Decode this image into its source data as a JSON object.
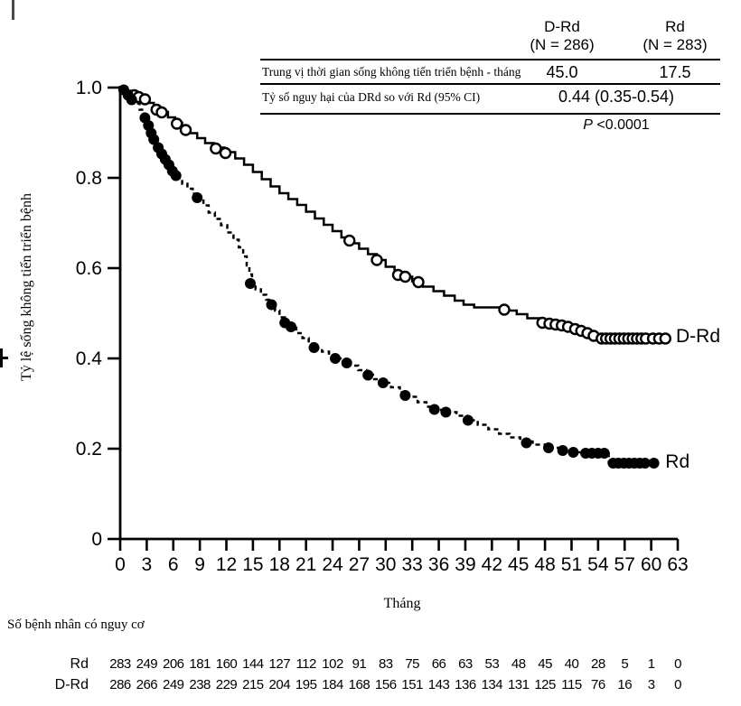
{
  "summary_table": {
    "col1_header_line1": "D-Rd",
    "col1_header_line2": "(N = 286)",
    "col2_header_line1": "Rd",
    "col2_header_line2": "(N = 283)",
    "row1_label": "Trung vị thời gian sống không tiến triển bệnh - tháng",
    "row1_col1": "45.0",
    "row1_col2": "17.5",
    "row2_label": "Tỷ số nguy hại của DRd so với Rd (95% CI)",
    "row2_value": "0.44 (0.35-0.54)",
    "p_label": "P",
    "p_value": " <0.0001"
  },
  "chart_data": {
    "type": "line",
    "subtype": "kaplan-meier-step",
    "title": "",
    "xlabel": "Tháng",
    "ylabel": "Tỷ lệ sống không tiến triển bệnh",
    "xlim": [
      0,
      63
    ],
    "ylim": [
      0,
      1
    ],
    "grid": false,
    "x_ticks": [
      0,
      3,
      6,
      9,
      12,
      15,
      18,
      21,
      24,
      27,
      30,
      33,
      36,
      39,
      42,
      45,
      48,
      51,
      54,
      57,
      60,
      63
    ],
    "y_ticks": [
      "1.0",
      "0.8",
      "0.6",
      "0.4",
      "0.2",
      "0"
    ],
    "series": [
      {
        "name": "D-Rd",
        "style": "solid",
        "marker": "open-circle",
        "color": "#000000",
        "label_at": [
          62.8,
          0.45
        ],
        "steps": [
          [
            0,
            1.0
          ],
          [
            0.8,
            0.993
          ],
          [
            1.5,
            0.985
          ],
          [
            2.2,
            0.976
          ],
          [
            3.0,
            0.966
          ],
          [
            3.8,
            0.956
          ],
          [
            4.6,
            0.946
          ],
          [
            5.4,
            0.934
          ],
          [
            6.2,
            0.922
          ],
          [
            7.0,
            0.91
          ],
          [
            7.8,
            0.899
          ],
          [
            8.7,
            0.888
          ],
          [
            9.6,
            0.877
          ],
          [
            10.6,
            0.867
          ],
          [
            11.8,
            0.857
          ],
          [
            13.0,
            0.843
          ],
          [
            14.0,
            0.829
          ],
          [
            15.0,
            0.813
          ],
          [
            16.0,
            0.797
          ],
          [
            17.0,
            0.781
          ],
          [
            18.0,
            0.766
          ],
          [
            19.0,
            0.753
          ],
          [
            20.0,
            0.74
          ],
          [
            21.0,
            0.725
          ],
          [
            22.0,
            0.71
          ],
          [
            23.0,
            0.696
          ],
          [
            24.0,
            0.682
          ],
          [
            25.0,
            0.668
          ],
          [
            26.0,
            0.655
          ],
          [
            27.0,
            0.643
          ],
          [
            28.0,
            0.631
          ],
          [
            29.0,
            0.618
          ],
          [
            30.0,
            0.603
          ],
          [
            31.0,
            0.591
          ],
          [
            32.0,
            0.581
          ],
          [
            33.0,
            0.571
          ],
          [
            34.2,
            0.559
          ],
          [
            35.4,
            0.549
          ],
          [
            36.6,
            0.539
          ],
          [
            37.8,
            0.528
          ],
          [
            38.8,
            0.519
          ],
          [
            40.0,
            0.513
          ],
          [
            43.6,
            0.506
          ],
          [
            44.8,
            0.498
          ],
          [
            46.0,
            0.489
          ],
          [
            47.4,
            0.481
          ],
          [
            49.4,
            0.474
          ],
          [
            51.0,
            0.467
          ],
          [
            52.4,
            0.459
          ],
          [
            53.5,
            0.451
          ],
          [
            54.3,
            0.444
          ],
          [
            61.8,
            0.444
          ]
        ],
        "censors": [
          [
            1.6,
            0.983
          ],
          [
            2.1,
            0.979
          ],
          [
            2.8,
            0.974
          ],
          [
            4.1,
            0.951
          ],
          [
            4.7,
            0.945
          ],
          [
            6.4,
            0.92
          ],
          [
            7.4,
            0.906
          ],
          [
            10.8,
            0.865
          ],
          [
            11.9,
            0.855
          ],
          [
            25.9,
            0.661
          ],
          [
            29.0,
            0.618
          ],
          [
            31.4,
            0.585
          ],
          [
            32.2,
            0.581
          ],
          [
            33.7,
            0.569
          ],
          [
            43.4,
            0.508
          ],
          [
            47.7,
            0.479
          ],
          [
            48.5,
            0.477
          ],
          [
            49.2,
            0.475
          ],
          [
            49.9,
            0.473
          ],
          [
            50.6,
            0.47
          ],
          [
            51.4,
            0.465
          ],
          [
            52.1,
            0.461
          ],
          [
            52.8,
            0.456
          ],
          [
            53.5,
            0.45
          ],
          [
            54.4,
            0.444
          ],
          [
            54.9,
            0.444
          ],
          [
            55.4,
            0.444
          ],
          [
            55.9,
            0.444
          ],
          [
            56.4,
            0.444
          ],
          [
            56.9,
            0.444
          ],
          [
            57.4,
            0.444
          ],
          [
            57.9,
            0.444
          ],
          [
            58.4,
            0.444
          ],
          [
            58.9,
            0.444
          ],
          [
            59.4,
            0.444
          ],
          [
            60.2,
            0.444
          ],
          [
            60.9,
            0.444
          ],
          [
            61.6,
            0.444
          ]
        ]
      },
      {
        "name": "Rd",
        "style": "dashed",
        "marker": "filled-circle",
        "color": "#000000",
        "label_at": [
          61.6,
          0.172
        ],
        "steps": [
          [
            0,
            1.0
          ],
          [
            0.5,
            0.991
          ],
          [
            1.0,
            0.979
          ],
          [
            1.6,
            0.965
          ],
          [
            2.2,
            0.951
          ],
          [
            2.7,
            0.936
          ],
          [
            3.1,
            0.921
          ],
          [
            3.4,
            0.906
          ],
          [
            3.7,
            0.891
          ],
          [
            4.0,
            0.877
          ],
          [
            4.4,
            0.863
          ],
          [
            4.8,
            0.849
          ],
          [
            5.2,
            0.837
          ],
          [
            5.6,
            0.825
          ],
          [
            6.0,
            0.812
          ],
          [
            6.5,
            0.799
          ],
          [
            7.0,
            0.787
          ],
          [
            7.6,
            0.776
          ],
          [
            8.2,
            0.765
          ],
          [
            8.8,
            0.753
          ],
          [
            9.4,
            0.739
          ],
          [
            10.0,
            0.723
          ],
          [
            10.7,
            0.709
          ],
          [
            11.4,
            0.695
          ],
          [
            12.1,
            0.679
          ],
          [
            12.8,
            0.663
          ],
          [
            13.4,
            0.646
          ],
          [
            13.9,
            0.626
          ],
          [
            14.3,
            0.606
          ],
          [
            14.6,
            0.586
          ],
          [
            14.9,
            0.566
          ],
          [
            15.3,
            0.553
          ],
          [
            15.9,
            0.541
          ],
          [
            16.5,
            0.53
          ],
          [
            17.0,
            0.519
          ],
          [
            17.5,
            0.506
          ],
          [
            18.0,
            0.491
          ],
          [
            18.6,
            0.479
          ],
          [
            19.2,
            0.468
          ],
          [
            19.9,
            0.456
          ],
          [
            20.6,
            0.445
          ],
          [
            21.3,
            0.433
          ],
          [
            22.0,
            0.423
          ],
          [
            22.8,
            0.415
          ],
          [
            23.6,
            0.408
          ],
          [
            24.4,
            0.4
          ],
          [
            25.2,
            0.392
          ],
          [
            26.0,
            0.384
          ],
          [
            26.9,
            0.374
          ],
          [
            27.8,
            0.364
          ],
          [
            28.7,
            0.354
          ],
          [
            29.6,
            0.346
          ],
          [
            30.6,
            0.336
          ],
          [
            31.6,
            0.325
          ],
          [
            32.6,
            0.315
          ],
          [
            33.6,
            0.303
          ],
          [
            34.6,
            0.293
          ],
          [
            35.6,
            0.286
          ],
          [
            36.8,
            0.281
          ],
          [
            38.0,
            0.273
          ],
          [
            39.2,
            0.263
          ],
          [
            40.4,
            0.253
          ],
          [
            41.6,
            0.243
          ],
          [
            42.8,
            0.233
          ],
          [
            44.0,
            0.225
          ],
          [
            45.2,
            0.216
          ],
          [
            46.6,
            0.209
          ],
          [
            48.2,
            0.202
          ],
          [
            49.6,
            0.197
          ],
          [
            51.0,
            0.192
          ],
          [
            52.2,
            0.19
          ],
          [
            55.0,
            0.19
          ],
          [
            55.2,
            0.168
          ],
          [
            60.5,
            0.168
          ]
        ],
        "censors": [
          [
            0.4,
            0.995
          ],
          [
            0.9,
            0.983
          ],
          [
            1.3,
            0.973
          ],
          [
            2.8,
            0.933
          ],
          [
            3.2,
            0.916
          ],
          [
            3.5,
            0.899
          ],
          [
            3.8,
            0.885
          ],
          [
            4.3,
            0.867
          ],
          [
            4.7,
            0.853
          ],
          [
            5.1,
            0.841
          ],
          [
            5.5,
            0.829
          ],
          [
            5.9,
            0.815
          ],
          [
            6.3,
            0.805
          ],
          [
            8.7,
            0.756
          ],
          [
            14.7,
            0.566
          ],
          [
            17.1,
            0.519
          ],
          [
            18.6,
            0.479
          ],
          [
            19.3,
            0.47
          ],
          [
            21.9,
            0.424
          ],
          [
            24.3,
            0.4
          ],
          [
            25.6,
            0.39
          ],
          [
            28.0,
            0.363
          ],
          [
            29.7,
            0.346
          ],
          [
            32.2,
            0.318
          ],
          [
            35.5,
            0.287
          ],
          [
            36.8,
            0.281
          ],
          [
            39.3,
            0.263
          ],
          [
            45.9,
            0.213
          ],
          [
            48.4,
            0.202
          ],
          [
            50.0,
            0.196
          ],
          [
            51.2,
            0.192
          ],
          [
            52.6,
            0.19
          ],
          [
            53.3,
            0.19
          ],
          [
            54.0,
            0.19
          ],
          [
            54.7,
            0.19
          ],
          [
            55.7,
            0.168
          ],
          [
            56.3,
            0.168
          ],
          [
            56.9,
            0.168
          ],
          [
            57.5,
            0.168
          ],
          [
            58.1,
            0.168
          ],
          [
            58.7,
            0.168
          ],
          [
            59.3,
            0.168
          ],
          [
            60.3,
            0.168
          ]
        ]
      }
    ]
  },
  "risk_table": {
    "title": "Số bệnh nhân có nguy cơ",
    "rows": [
      {
        "label": "Rd",
        "counts": [
          283,
          249,
          206,
          181,
          160,
          144,
          127,
          112,
          102,
          91,
          83,
          75,
          66,
          63,
          53,
          48,
          45,
          40,
          28,
          5,
          1,
          0
        ]
      },
      {
        "label": "D-Rd",
        "counts": [
          286,
          266,
          249,
          238,
          229,
          215,
          204,
          195,
          184,
          168,
          156,
          151,
          143,
          136,
          134,
          131,
          125,
          115,
          76,
          16,
          3,
          0
        ]
      }
    ]
  }
}
